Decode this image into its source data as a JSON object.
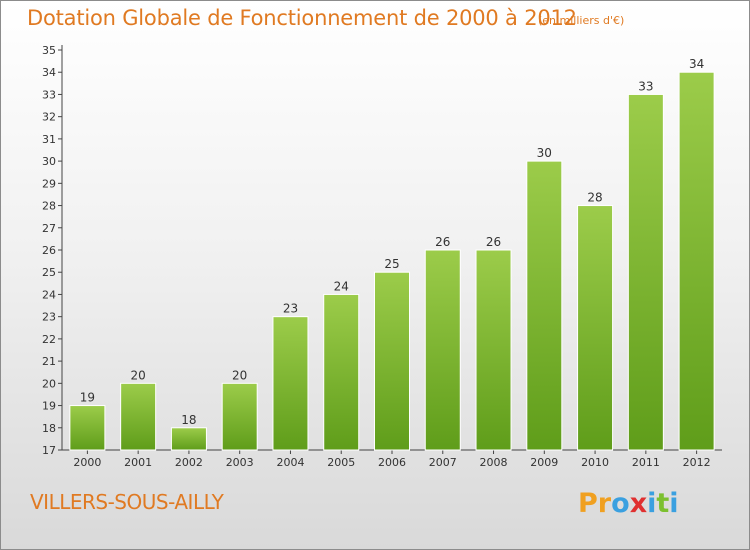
{
  "header": {
    "title": "Dotation Globale de Fonctionnement de 2000 à 2012",
    "subtitle": "(en milliers d'€)"
  },
  "footer": {
    "commune": "VILLERS-SOUS-AILLY",
    "logo_text": "Proxiti",
    "logo_letters": [
      "P",
      "r",
      "o",
      "x",
      "i",
      "t",
      "i"
    ],
    "logo_colors": [
      "#f0a020",
      "#f0a020",
      "#3aa0e0",
      "#e03030",
      "#3aa0e0",
      "#7cc030",
      "#3aa0e0"
    ]
  },
  "chart_data": {
    "type": "bar",
    "categories": [
      "2000",
      "2001",
      "2002",
      "2003",
      "2004",
      "2005",
      "2006",
      "2007",
      "2008",
      "2009",
      "2010",
      "2011",
      "2012"
    ],
    "values": [
      19,
      20,
      18,
      20,
      23,
      24,
      25,
      26,
      26,
      30,
      28,
      33,
      34
    ],
    "ylim": [
      17,
      35
    ],
    "yticks": [
      17,
      18,
      19,
      20,
      21,
      22,
      23,
      24,
      25,
      26,
      27,
      28,
      29,
      30,
      31,
      32,
      33,
      34,
      35
    ],
    "grid": false,
    "bar_color": "#7cb82f"
  }
}
